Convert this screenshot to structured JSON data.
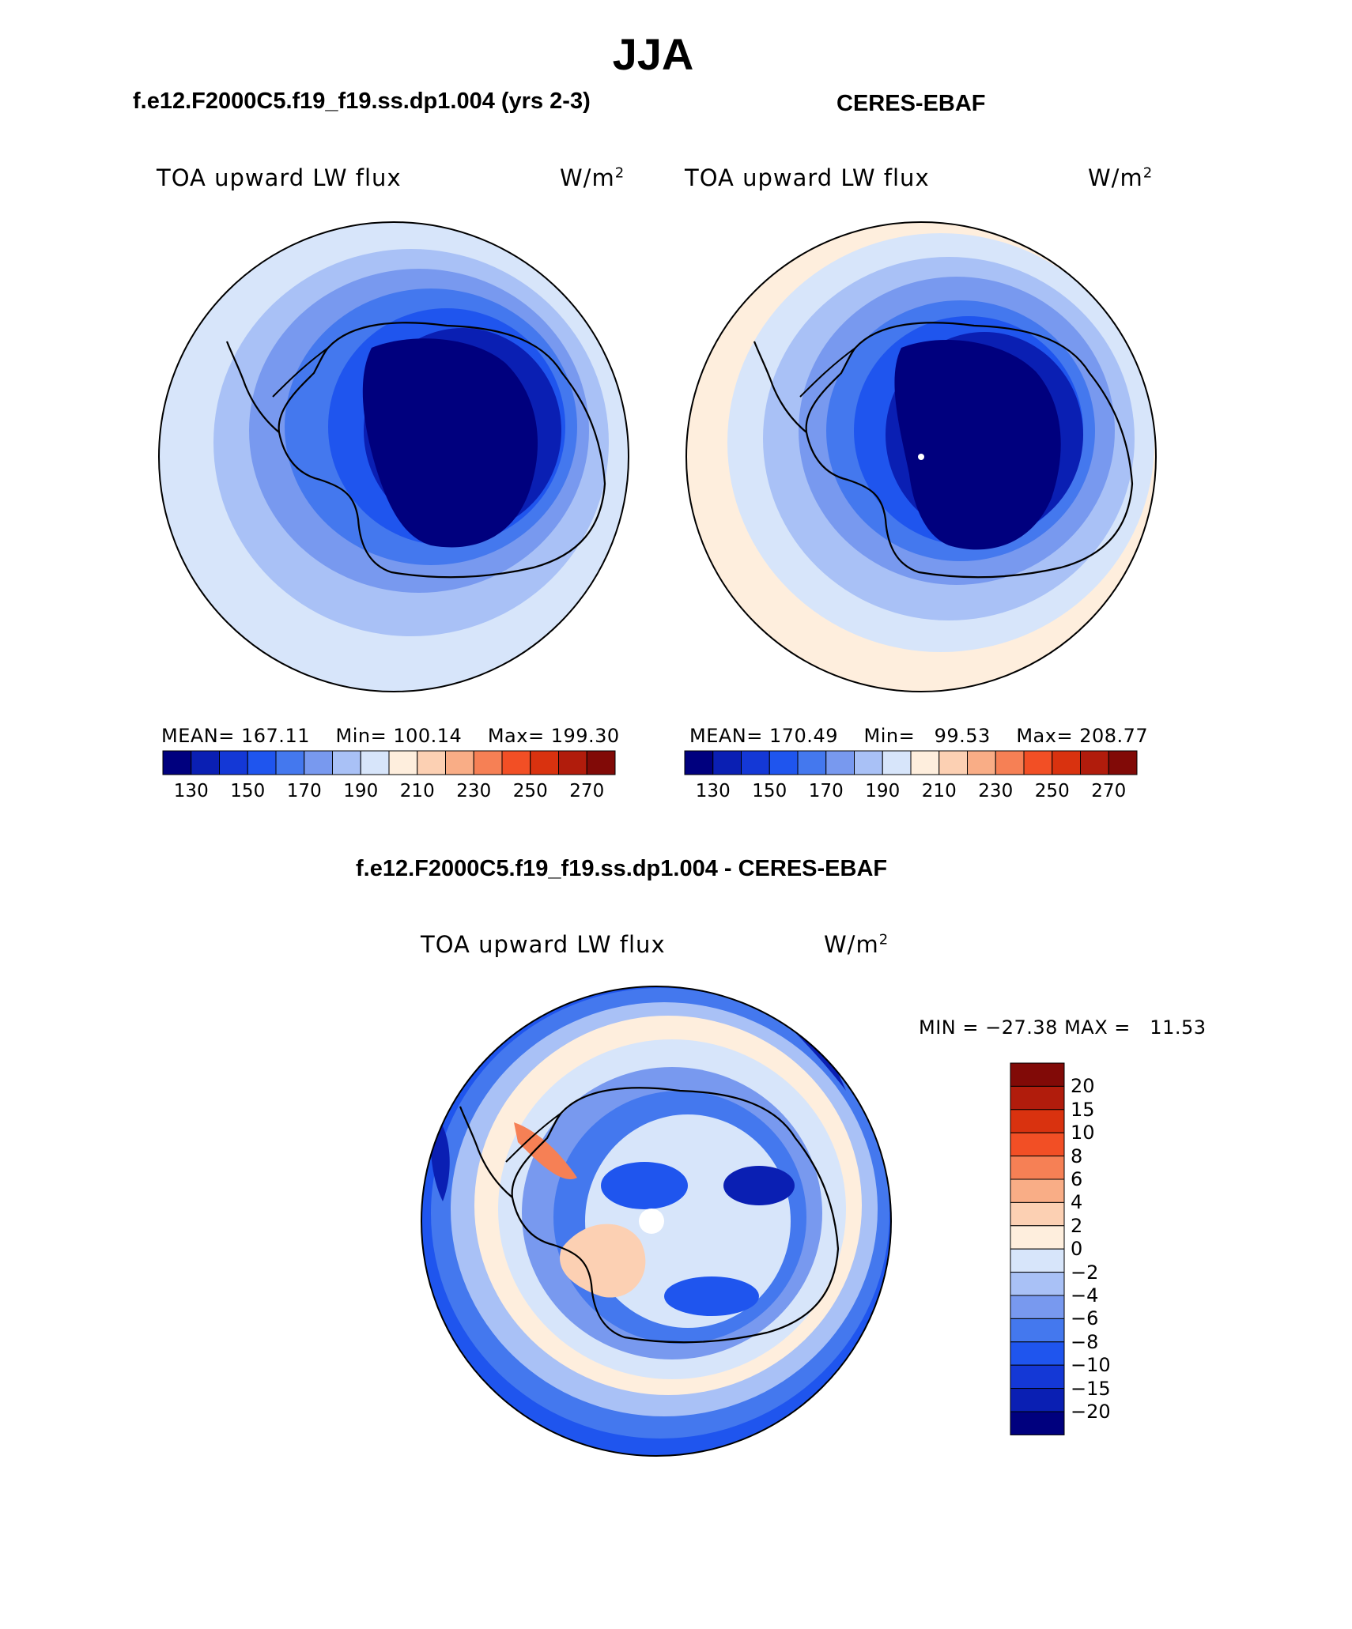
{
  "title": "JJA",
  "panels": {
    "model": {
      "case_title": "f.e12.F2000C5.f19_f19.ss.dp1.004 (yrs 2-3)",
      "variable": "TOA upward LW flux",
      "units_base": "W/m",
      "units_exp": "2",
      "mean_label": "MEAN=",
      "mean": "167.11",
      "min_label": "Min=",
      "min": "100.14",
      "max_label": "Max=",
      "max": "199.30"
    },
    "obs": {
      "case_title": "CERES-EBAF",
      "variable": "TOA upward LW flux",
      "units_base": "W/m",
      "units_exp": "2",
      "mean_label": "MEAN=",
      "mean": "170.49",
      "min_label": "Min=",
      "min": "99.53",
      "max_label": "Max=",
      "max": "208.77"
    },
    "diff": {
      "case_title": "f.e12.F2000C5.f19_f19.ss.dp1.004 - CERES-EBAF",
      "variable": "TOA upward LW flux",
      "units_base": "W/m",
      "units_exp": "2",
      "min_label": "MIN =",
      "min": "−27.38",
      "max_label": "MAX =",
      "max": "11.53"
    }
  },
  "colorbar_main": {
    "ticks": [
      "130",
      "150",
      "170",
      "190",
      "210",
      "230",
      "250",
      "270"
    ],
    "colors": [
      "#00007e",
      "#0a1fb3",
      "#1438d6",
      "#1f55ee",
      "#4478ee",
      "#7899ef",
      "#a9c1f6",
      "#d7e5fa",
      "#feeedd",
      "#fcd0b3",
      "#f9ad86",
      "#f68055",
      "#f24f25",
      "#d9320f",
      "#b11c0c",
      "#810a07"
    ]
  },
  "colorbar_diff": {
    "ticks": [
      "20",
      "15",
      "10",
      "8",
      "6",
      "4",
      "2",
      "0",
      "−2",
      "−4",
      "−6",
      "−8",
      "−10",
      "−15",
      "−20"
    ],
    "colors": [
      "#810a07",
      "#b11c0c",
      "#d9320f",
      "#f24f25",
      "#f68055",
      "#f9ad86",
      "#fcd0b3",
      "#feeedd",
      "#d7e5fa",
      "#a9c1f6",
      "#7899ef",
      "#4478ee",
      "#1f55ee",
      "#1438d6",
      "#0a1fb3",
      "#00007e"
    ]
  }
}
